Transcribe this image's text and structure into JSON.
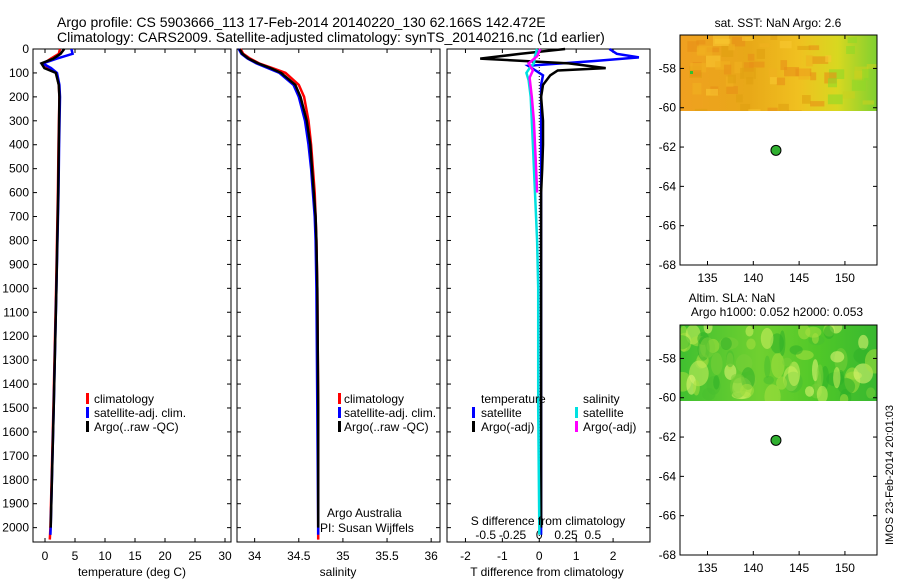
{
  "header": {
    "line1": "Argo profile: CS 5903666_113 17-Feb-2014 20140220_130 62.166S 142.472E",
    "line2": "Climatology: CARS2009. Satellite-adjusted climatology: synTS_20140216.nc (1d earlier)"
  },
  "colors": {
    "climatology": "#ff0000",
    "satellite": "#0000ff",
    "argo": "#000000",
    "sal_satellite": "#00e0e0",
    "sal_argo": "#ff00ff"
  },
  "chart_data": [
    {
      "type": "line",
      "name": "temperature-profile",
      "xlabel": "temperature (deg C)",
      "ylabel": "",
      "xlim": [
        -2,
        31
      ],
      "ylim": [
        2060,
        0
      ],
      "xticks": [
        0,
        5,
        10,
        15,
        20,
        25,
        30
      ],
      "yticks": [
        0,
        100,
        200,
        300,
        400,
        500,
        600,
        700,
        800,
        900,
        1000,
        1100,
        1200,
        1300,
        1400,
        1500,
        1600,
        1700,
        1800,
        1900,
        2000
      ],
      "legend": [
        "climatology",
        "satellite-adj. clim.",
        "Argo(..raw -QC)"
      ],
      "series": [
        {
          "name": "climatology",
          "depth": [
            0,
            20,
            40,
            60,
            80,
            100,
            150,
            200,
            400,
            600,
            1000,
            1500,
            2000,
            2050
          ],
          "values": [
            2.5,
            2.3,
            1.0,
            -0.2,
            0.5,
            1.9,
            2.3,
            2.4,
            2.25,
            2.15,
            1.85,
            1.4,
            0.9,
            0.8
          ]
        },
        {
          "name": "satellite-adj. clim.",
          "depth": [
            0,
            20,
            40,
            60,
            80,
            100,
            150,
            200,
            400,
            600,
            1000,
            1500,
            2000,
            2030
          ],
          "values": [
            4.4,
            4.6,
            2.0,
            -0.4,
            1.0,
            2.0,
            2.4,
            2.5,
            2.35,
            2.25,
            1.9,
            1.45,
            0.95,
            0.9
          ]
        },
        {
          "name": "Argo(..raw -QC)",
          "depth": [
            0,
            20,
            40,
            60,
            80,
            100,
            150,
            200,
            400,
            600,
            1000,
            1500,
            2000
          ],
          "values": [
            3.2,
            2.6,
            1.4,
            -0.6,
            -0.1,
            1.8,
            2.3,
            2.4,
            2.3,
            2.2,
            1.9,
            1.45,
            0.95
          ]
        }
      ]
    },
    {
      "type": "line",
      "name": "salinity-profile",
      "xlabel": "salinity",
      "xlim": [
        33.8,
        36.1
      ],
      "ylim": [
        2060,
        0
      ],
      "xticks": [
        34,
        34.5,
        35,
        35.5,
        36
      ],
      "xticklabels": [
        "34",
        "34.5",
        "35",
        "35.5",
        "36"
      ],
      "legend": [
        "climatology",
        "satellite-adj. clim.",
        "Argo(..raw -QC)"
      ],
      "annotation": [
        "Argo Australia",
        "PI: Susan Wijffels"
      ],
      "series": [
        {
          "name": "climatology",
          "depth": [
            0,
            20,
            40,
            60,
            80,
            100,
            150,
            200,
            300,
            400,
            500,
            600,
            700,
            800,
            1000,
            1500,
            2000,
            2050
          ],
          "values": [
            33.84,
            33.87,
            33.95,
            34.05,
            34.2,
            34.35,
            34.5,
            34.56,
            34.61,
            34.64,
            34.66,
            34.68,
            34.69,
            34.7,
            34.71,
            34.72,
            34.72,
            34.72
          ]
        },
        {
          "name": "satellite-adj. clim.",
          "depth": [
            0,
            20,
            40,
            60,
            80,
            100,
            150,
            200,
            300,
            400,
            500,
            600,
            700,
            800,
            1000,
            1500,
            2000,
            2030
          ],
          "values": [
            33.82,
            33.85,
            33.92,
            34.02,
            34.15,
            34.28,
            34.44,
            34.5,
            34.57,
            34.61,
            34.64,
            34.66,
            34.68,
            34.69,
            34.7,
            34.71,
            34.72,
            34.72
          ]
        },
        {
          "name": "Argo(..raw -QC)",
          "depth": [
            0,
            20,
            40,
            60,
            80,
            100,
            150,
            200,
            300,
            400,
            500,
            600,
            700,
            800,
            1000,
            1500,
            2000
          ],
          "values": [
            33.83,
            33.86,
            33.93,
            34.04,
            34.18,
            34.3,
            34.46,
            34.52,
            34.59,
            34.63,
            34.65,
            34.67,
            34.69,
            34.7,
            34.71,
            34.72,
            34.72
          ]
        }
      ]
    },
    {
      "type": "line",
      "name": "difference-from-climatology",
      "xlabel": "T difference from climatology",
      "toplabel": "S difference from climatology",
      "xlim": [
        -2.5,
        3
      ],
      "ylim": [
        2060,
        0
      ],
      "xticks": [
        -2,
        -1,
        0,
        1,
        2
      ],
      "sticks": [
        -0.5,
        -0.25,
        0,
        0.25,
        0.5
      ],
      "sticklabels": [
        "-0.5",
        "-0.25",
        "0",
        "0.25",
        "0.5"
      ],
      "legend_left_title": "temperature",
      "legend_right_title": "salinity",
      "legend": [
        "satellite",
        "Argo(-adj)",
        "satellite",
        "Argo(-adj)"
      ],
      "series": [
        {
          "name": "T satellite",
          "depth": [
            0,
            20,
            35,
            50,
            70,
            90,
            110,
            150,
            200,
            400,
            600,
            1000,
            1500,
            2000,
            2030
          ],
          "values": [
            1.9,
            2.1,
            2.7,
            1.5,
            -0.3,
            -0.1,
            0.1,
            0.05,
            0.05,
            0.05,
            0.05,
            0.05,
            0.05,
            0.05,
            0.05
          ]
        },
        {
          "name": "T Argo(-adj)",
          "depth": [
            0,
            20,
            40,
            60,
            80,
            90,
            110,
            150,
            200,
            300,
            400,
            500,
            600,
            1000,
            1500,
            2000
          ],
          "values": [
            0.7,
            -0.5,
            -1.6,
            0.8,
            1.8,
            0.5,
            0.3,
            0.1,
            0.05,
            0.1,
            0.1,
            0.08,
            0.05,
            0.05,
            0.05,
            0.05
          ]
        },
        {
          "name": "S satellite",
          "depth": [
            0,
            30,
            60,
            80,
            100,
            130,
            200,
            400,
            600,
            800,
            1000,
            1500,
            2000,
            2030
          ],
          "values": [
            -0.02,
            -0.04,
            -0.05,
            -0.09,
            -0.12,
            -0.1,
            -0.08,
            -0.06,
            -0.04,
            -0.02,
            -0.01,
            -0.01,
            0,
            0
          ]
        },
        {
          "name": "S Argo(-adj)",
          "depth": [
            0,
            30,
            60,
            90,
            120,
            200,
            300,
            400,
            500,
            600
          ],
          "values": [
            0.01,
            -0.02,
            -0.1,
            -0.06,
            -0.09,
            -0.07,
            -0.05,
            -0.04,
            -0.03,
            -0.02
          ]
        }
      ]
    },
    {
      "type": "heatmap",
      "name": "sst-map",
      "title": "sat. SST: NaN Argo: 2.6",
      "xlim": [
        132,
        153.5
      ],
      "ylim": [
        -68,
        -56.3
      ],
      "xticks": [
        135,
        140,
        145,
        150
      ],
      "yticks": [
        -58,
        -60,
        -62,
        -64,
        -66,
        -68
      ],
      "marker": {
        "lon": 142.472,
        "lat": -62.166
      }
    },
    {
      "type": "heatmap",
      "name": "sla-map",
      "title1": "Altim. SLA: NaN",
      "title2": "Argo h1000: 0.052 h2000: 0.053",
      "xlim": [
        132,
        153.5
      ],
      "ylim": [
        -68,
        -56.3
      ],
      "xticks": [
        135,
        140,
        145,
        150
      ],
      "yticks": [
        -58,
        -60,
        -62,
        -64,
        -66,
        -68
      ],
      "marker": {
        "lon": 142.472,
        "lat": -62.166
      }
    }
  ],
  "footer": {
    "stamp": "IMOS 23-Feb-2014 20:01:03"
  }
}
